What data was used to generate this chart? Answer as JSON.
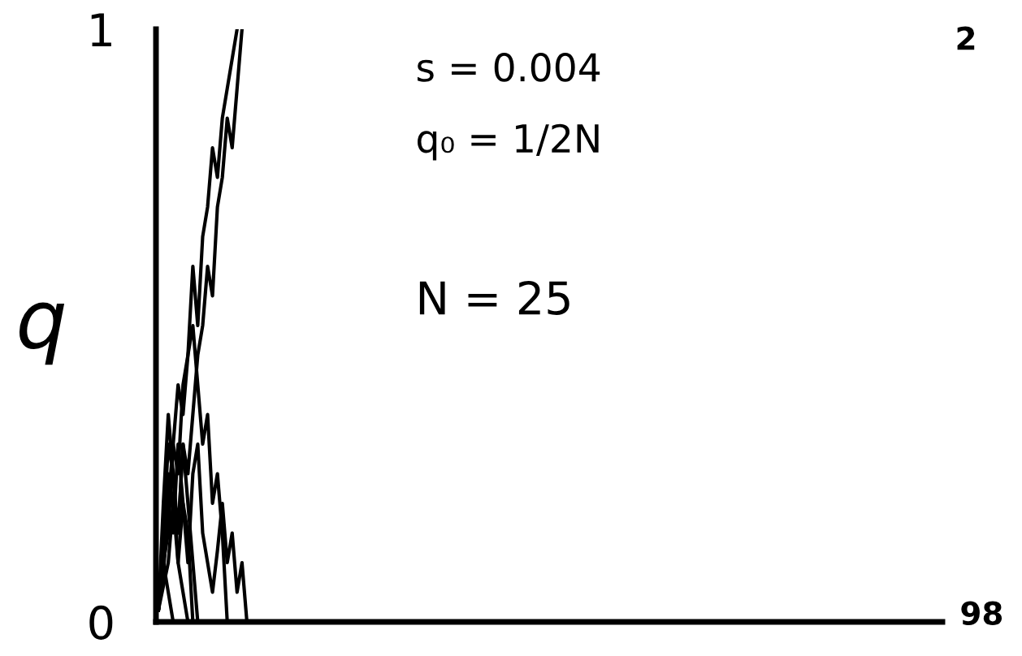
{
  "chart_data": {
    "type": "line",
    "ylabel": "q",
    "categories": [
      null,
      null,
      null,
      null,
      null,
      null,
      null,
      null,
      null,
      null,
      null,
      null,
      null,
      null,
      null,
      null,
      null,
      null,
      null,
      null,
      null,
      null,
      null,
      null,
      null,
      null,
      null,
      null,
      null,
      null,
      null,
      null,
      null,
      null,
      null,
      null,
      null,
      null,
      null,
      null,
      null,
      null,
      null,
      null,
      null,
      null,
      null,
      null,
      null,
      null,
      null,
      null,
      null,
      null,
      null,
      null,
      null,
      null,
      null,
      null,
      null,
      null,
      null,
      null,
      null,
      null,
      null,
      null,
      null,
      null,
      null,
      null,
      null,
      null,
      null,
      null,
      null,
      null,
      null,
      null,
      null,
      null,
      null,
      null,
      null,
      null,
      null,
      null,
      null,
      null,
      null,
      null,
      null,
      null,
      null,
      null,
      null,
      null,
      null,
      null,
      null,
      null,
      null,
      null,
      null,
      null,
      null,
      null,
      null,
      null,
      null,
      null,
      null,
      null,
      null,
      null,
      null,
      null,
      null,
      null,
      null,
      null,
      null,
      null,
      null,
      null,
      null,
      null,
      null,
      null,
      null,
      null,
      null,
      null,
      null,
      null,
      null,
      null,
      null,
      null,
      null,
      null,
      null,
      null,
      null,
      null,
      null,
      null,
      null,
      null,
      null,
      null,
      null,
      null,
      null,
      null,
      null,
      null,
      null,
      null
    ],
    "series": [
      {
        "color": "#000000",
        "values": [
          0.02,
          0.06,
          0.1,
          0.2,
          0.15,
          0.3,
          0.25,
          0.35,
          0.45,
          0.5,
          0.6,
          0.55,
          0.7,
          0.75,
          0.85,
          0.8,
          0.9,
          1.0,
          null,
          null,
          null,
          null,
          null,
          null,
          null,
          null,
          null,
          null,
          null,
          null,
          null,
          null,
          null,
          null,
          null,
          null,
          null,
          null,
          null,
          null,
          null,
          null,
          null,
          null,
          null,
          null,
          null,
          null,
          null,
          null,
          null,
          null,
          null,
          null,
          null,
          null,
          null,
          null,
          null,
          null,
          null,
          null,
          null,
          null,
          null,
          null,
          null,
          null,
          null,
          null,
          null,
          null,
          null,
          null,
          null,
          null,
          null,
          null,
          null,
          null,
          null,
          null,
          null,
          null,
          null,
          null,
          null,
          null,
          null,
          null,
          null,
          null,
          null,
          null,
          null,
          null,
          null,
          null,
          null,
          null,
          null,
          null,
          null,
          null,
          null,
          null,
          null,
          null,
          null,
          null,
          null,
          null,
          null,
          null,
          null,
          null,
          null,
          null,
          null,
          null,
          null,
          null,
          null,
          null,
          null,
          null,
          null,
          null,
          null,
          null,
          null,
          null,
          null,
          null,
          null,
          null,
          null,
          null,
          null,
          null,
          null,
          null,
          null,
          null,
          null,
          null,
          null,
          null,
          null,
          null,
          null,
          null,
          null,
          null,
          null,
          null,
          null,
          null,
          null,
          null
        ]
      },
      {
        "color": "#000000",
        "values": [
          0.02,
          0.1,
          0.15,
          0.3,
          0.25,
          0.4,
          0.45,
          0.6,
          0.5,
          0.65,
          0.7,
          0.8,
          0.75,
          0.85,
          0.9,
          0.95,
          1.0,
          null,
          null,
          null,
          null,
          null,
          null,
          null,
          null,
          null,
          null,
          null,
          null,
          null,
          null,
          null,
          null,
          null,
          null,
          null,
          null,
          null,
          null,
          null,
          null,
          null,
          null,
          null,
          null,
          null,
          null,
          null,
          null,
          null,
          null,
          null,
          null,
          null,
          null,
          null,
          null,
          null,
          null,
          null,
          null,
          null,
          null,
          null,
          null,
          null,
          null,
          null,
          null,
          null,
          null,
          null,
          null,
          null,
          null,
          null,
          null,
          null,
          null,
          null,
          null,
          null,
          null,
          null,
          null,
          null,
          null,
          null,
          null,
          null,
          null,
          null,
          null,
          null,
          null,
          null,
          null,
          null,
          null,
          null,
          null,
          null,
          null,
          null,
          null,
          null,
          null,
          null,
          null,
          null,
          null,
          null,
          null,
          null,
          null,
          null,
          null,
          null,
          null,
          null,
          null,
          null,
          null,
          null,
          null,
          null,
          null,
          null,
          null,
          null,
          null,
          null,
          null,
          null,
          null,
          null,
          null,
          null,
          null,
          null,
          null,
          null,
          null,
          null,
          null,
          null,
          null,
          null,
          null,
          null,
          null,
          null,
          null,
          null,
          null,
          null,
          null,
          null,
          null,
          null
        ]
      },
      {
        "color": "#000000",
        "values": [
          0.02,
          0.1,
          0.2,
          0.15,
          0.3,
          0.2,
          0.1,
          0.25,
          0.3,
          0.15,
          0.1,
          0.05,
          0.12,
          0.2,
          0.1,
          0.15,
          0.05,
          0.1,
          0.0,
          null,
          null,
          null,
          null,
          null,
          null,
          null,
          null,
          null,
          null,
          null,
          null,
          null,
          null,
          null,
          null,
          null,
          null,
          null,
          null,
          null,
          null,
          null,
          null,
          null,
          null,
          null,
          null,
          null,
          null,
          null,
          null,
          null,
          null,
          null,
          null,
          null,
          null,
          null,
          null,
          null,
          null,
          null,
          null,
          null,
          null,
          null,
          null,
          null,
          null,
          null,
          null,
          null,
          null,
          null,
          null,
          null,
          null,
          null,
          null,
          null,
          null,
          null,
          null,
          null,
          null,
          null,
          null,
          null,
          null,
          null,
          null,
          null,
          null,
          null,
          null,
          null,
          null,
          null,
          null,
          null,
          null,
          null,
          null,
          null,
          null,
          null,
          null,
          null,
          null,
          null,
          null,
          null,
          null,
          null,
          null,
          null,
          null,
          null,
          null,
          null,
          null,
          null,
          null,
          null,
          null,
          null,
          null,
          null,
          null,
          null,
          null,
          null,
          null,
          null,
          null,
          null,
          null,
          null,
          null,
          null,
          null,
          null,
          null,
          null,
          null,
          null,
          null,
          null,
          null,
          null,
          null,
          null,
          null,
          null,
          null,
          null,
          null,
          null,
          null,
          null
        ]
      },
      {
        "color": "#000000",
        "values": [
          0.02,
          0.15,
          0.3,
          0.25,
          0.1,
          0.05,
          0.0,
          null,
          null,
          null,
          null,
          null,
          null,
          null,
          null,
          null,
          null,
          null,
          null,
          null,
          null,
          null,
          null,
          null,
          null,
          null,
          null,
          null,
          null,
          null,
          null,
          null,
          null,
          null,
          null,
          null,
          null,
          null,
          null,
          null,
          null,
          null,
          null,
          null,
          null,
          null,
          null,
          null,
          null,
          null,
          null,
          null,
          null,
          null,
          null,
          null,
          null,
          null,
          null,
          null,
          null,
          null,
          null,
          null,
          null,
          null,
          null,
          null,
          null,
          null,
          null,
          null,
          null,
          null,
          null,
          null,
          null,
          null,
          null,
          null,
          null,
          null,
          null,
          null,
          null,
          null,
          null,
          null,
          null,
          null,
          null,
          null,
          null,
          null,
          null,
          null,
          null,
          null,
          null,
          null,
          null,
          null,
          null,
          null,
          null,
          null,
          null,
          null,
          null,
          null,
          null,
          null,
          null,
          null,
          null,
          null,
          null,
          null,
          null,
          null,
          null,
          null,
          null,
          null,
          null,
          null,
          null,
          null,
          null,
          null,
          null,
          null,
          null,
          null,
          null,
          null,
          null,
          null,
          null,
          null,
          null,
          null,
          null,
          null,
          null,
          null,
          null,
          null,
          null,
          null,
          null,
          null,
          null,
          null,
          null,
          null,
          null,
          null,
          null,
          null
        ]
      },
      {
        "color": "#000000",
        "values": [
          0.02,
          0.2,
          0.35,
          0.25,
          0.15,
          0.3,
          0.2,
          0.1,
          0.0,
          null,
          null,
          null,
          null,
          null,
          null,
          null,
          null,
          null,
          null,
          null,
          null,
          null,
          null,
          null,
          null,
          null,
          null,
          null,
          null,
          null,
          null,
          null,
          null,
          null,
          null,
          null,
          null,
          null,
          null,
          null,
          null,
          null,
          null,
          null,
          null,
          null,
          null,
          null,
          null,
          null,
          null,
          null,
          null,
          null,
          null,
          null,
          null,
          null,
          null,
          null,
          null,
          null,
          null,
          null,
          null,
          null,
          null,
          null,
          null,
          null,
          null,
          null,
          null,
          null,
          null,
          null,
          null,
          null,
          null,
          null,
          null,
          null,
          null,
          null,
          null,
          null,
          null,
          null,
          null,
          null,
          null,
          null,
          null,
          null,
          null,
          null,
          null,
          null,
          null,
          null,
          null,
          null,
          null,
          null,
          null,
          null,
          null,
          null,
          null,
          null,
          null,
          null,
          null,
          null,
          null,
          null,
          null,
          null,
          null,
          null,
          null,
          null,
          null,
          null,
          null,
          null,
          null,
          null,
          null,
          null,
          null,
          null,
          null,
          null,
          null,
          null,
          null,
          null,
          null,
          null,
          null,
          null,
          null,
          null,
          null,
          null,
          null,
          null,
          null,
          null,
          null,
          null,
          null,
          null,
          null,
          null,
          null,
          null,
          null,
          null
        ]
      },
      {
        "color": "#000000",
        "values": [
          0.02,
          0.1,
          0.05,
          0.0,
          null,
          null,
          null,
          null,
          null,
          null,
          null,
          null,
          null,
          null,
          null,
          null,
          null,
          null,
          null,
          null,
          null,
          null,
          null,
          null,
          null,
          null,
          null,
          null,
          null,
          null,
          null,
          null,
          null,
          null,
          null,
          null,
          null,
          null,
          null,
          null,
          null,
          null,
          null,
          null,
          null,
          null,
          null,
          null,
          null,
          null,
          null,
          null,
          null,
          null,
          null,
          null,
          null,
          null,
          null,
          null,
          null,
          null,
          null,
          null,
          null,
          null,
          null,
          null,
          null,
          null,
          null,
          null,
          null,
          null,
          null,
          null,
          null,
          null,
          null,
          null,
          null,
          null,
          null,
          null,
          null,
          null,
          null,
          null,
          null,
          null,
          null,
          null,
          null,
          null,
          null,
          null,
          null,
          null,
          null,
          null,
          null,
          null,
          null,
          null,
          null,
          null,
          null,
          null,
          null,
          null,
          null,
          null,
          null,
          null,
          null,
          null,
          null,
          null,
          null,
          null,
          null,
          null,
          null,
          null,
          null,
          null,
          null,
          null,
          null,
          null,
          null,
          null,
          null,
          null,
          null,
          null,
          null,
          null,
          null,
          null,
          null,
          null,
          null,
          null,
          null,
          null,
          null,
          null,
          null,
          null,
          null,
          null,
          null,
          null,
          null,
          null,
          null,
          null,
          null,
          null
        ]
      },
      {
        "color": "#000000",
        "values": [
          0.02,
          0.08,
          0.2,
          0.3,
          0.4,
          0.35,
          0.45,
          0.5,
          0.4,
          0.3,
          0.35,
          0.2,
          0.25,
          0.15,
          0.0,
          null,
          null,
          null,
          null,
          null,
          null,
          null,
          null,
          null,
          null,
          null,
          null,
          null,
          null,
          null,
          null,
          null,
          null,
          null,
          null,
          null,
          null,
          null,
          null,
          null,
          null,
          null,
          null,
          null,
          null,
          null,
          null,
          null,
          null,
          null,
          null,
          null,
          null,
          null,
          null,
          null,
          null,
          null,
          null,
          null,
          null,
          null,
          null,
          null,
          null,
          null,
          null,
          null,
          null,
          null,
          null,
          null,
          null,
          null,
          null,
          null,
          null,
          null,
          null,
          null,
          null,
          null,
          null,
          null,
          null,
          null,
          null,
          null,
          null,
          null,
          null,
          null,
          null,
          null,
          null,
          null,
          null,
          null,
          null,
          null,
          null,
          null,
          null,
          null,
          null,
          null,
          null,
          null,
          null,
          null,
          null,
          null,
          null,
          null,
          null,
          null,
          null,
          null,
          null,
          null,
          null,
          null,
          null,
          null,
          null,
          null,
          null,
          null,
          null,
          null,
          null,
          null,
          null,
          null,
          null,
          null,
          null,
          null,
          null,
          null,
          null,
          null,
          null,
          null,
          null,
          null,
          null,
          null,
          null,
          null,
          null,
          null,
          null,
          null,
          null,
          null,
          null,
          null,
          null,
          null
        ]
      },
      {
        "color": "#000000",
        "values": [
          0.02,
          0.15,
          0.25,
          0.2,
          0.1,
          0.2,
          0.15,
          0.0,
          null,
          null,
          null,
          null,
          null,
          null,
          null,
          null,
          null,
          null,
          null,
          null,
          null,
          null,
          null,
          null,
          null,
          null,
          null,
          null,
          null,
          null,
          null,
          null,
          null,
          null,
          null,
          null,
          null,
          null,
          null,
          null,
          null,
          null,
          null,
          null,
          null,
          null,
          null,
          null,
          null,
          null,
          null,
          null,
          null,
          null,
          null,
          null,
          null,
          null,
          null,
          null,
          null,
          null,
          null,
          null,
          null,
          null,
          null,
          null,
          null,
          null,
          null,
          null,
          null,
          null,
          null,
          null,
          null,
          null,
          null,
          null,
          null,
          null,
          null,
          null,
          null,
          null,
          null,
          null,
          null,
          null,
          null,
          null,
          null,
          null,
          null,
          null,
          null,
          null,
          null,
          null,
          null,
          null,
          null,
          null,
          null,
          null,
          null,
          null,
          null,
          null,
          null,
          null,
          null,
          null,
          null,
          null,
          null,
          null,
          null,
          null,
          null,
          null,
          null,
          null,
          null,
          null,
          null,
          null,
          null,
          null,
          null,
          null,
          null,
          null,
          null,
          null,
          null,
          null,
          null,
          null,
          null,
          null,
          null,
          null,
          null,
          null,
          null,
          null,
          null,
          null,
          null,
          null,
          null,
          null,
          null,
          null,
          null,
          null,
          null,
          null
        ]
      }
    ],
    "ylim": [
      0,
      1
    ],
    "yticks": [
      0,
      1
    ],
    "grid": false,
    "tick_labels": "y",
    "annotations": [
      "s = 0.004",
      "q₀ = 1/2N",
      "N = 25",
      "2",
      "98"
    ]
  }
}
